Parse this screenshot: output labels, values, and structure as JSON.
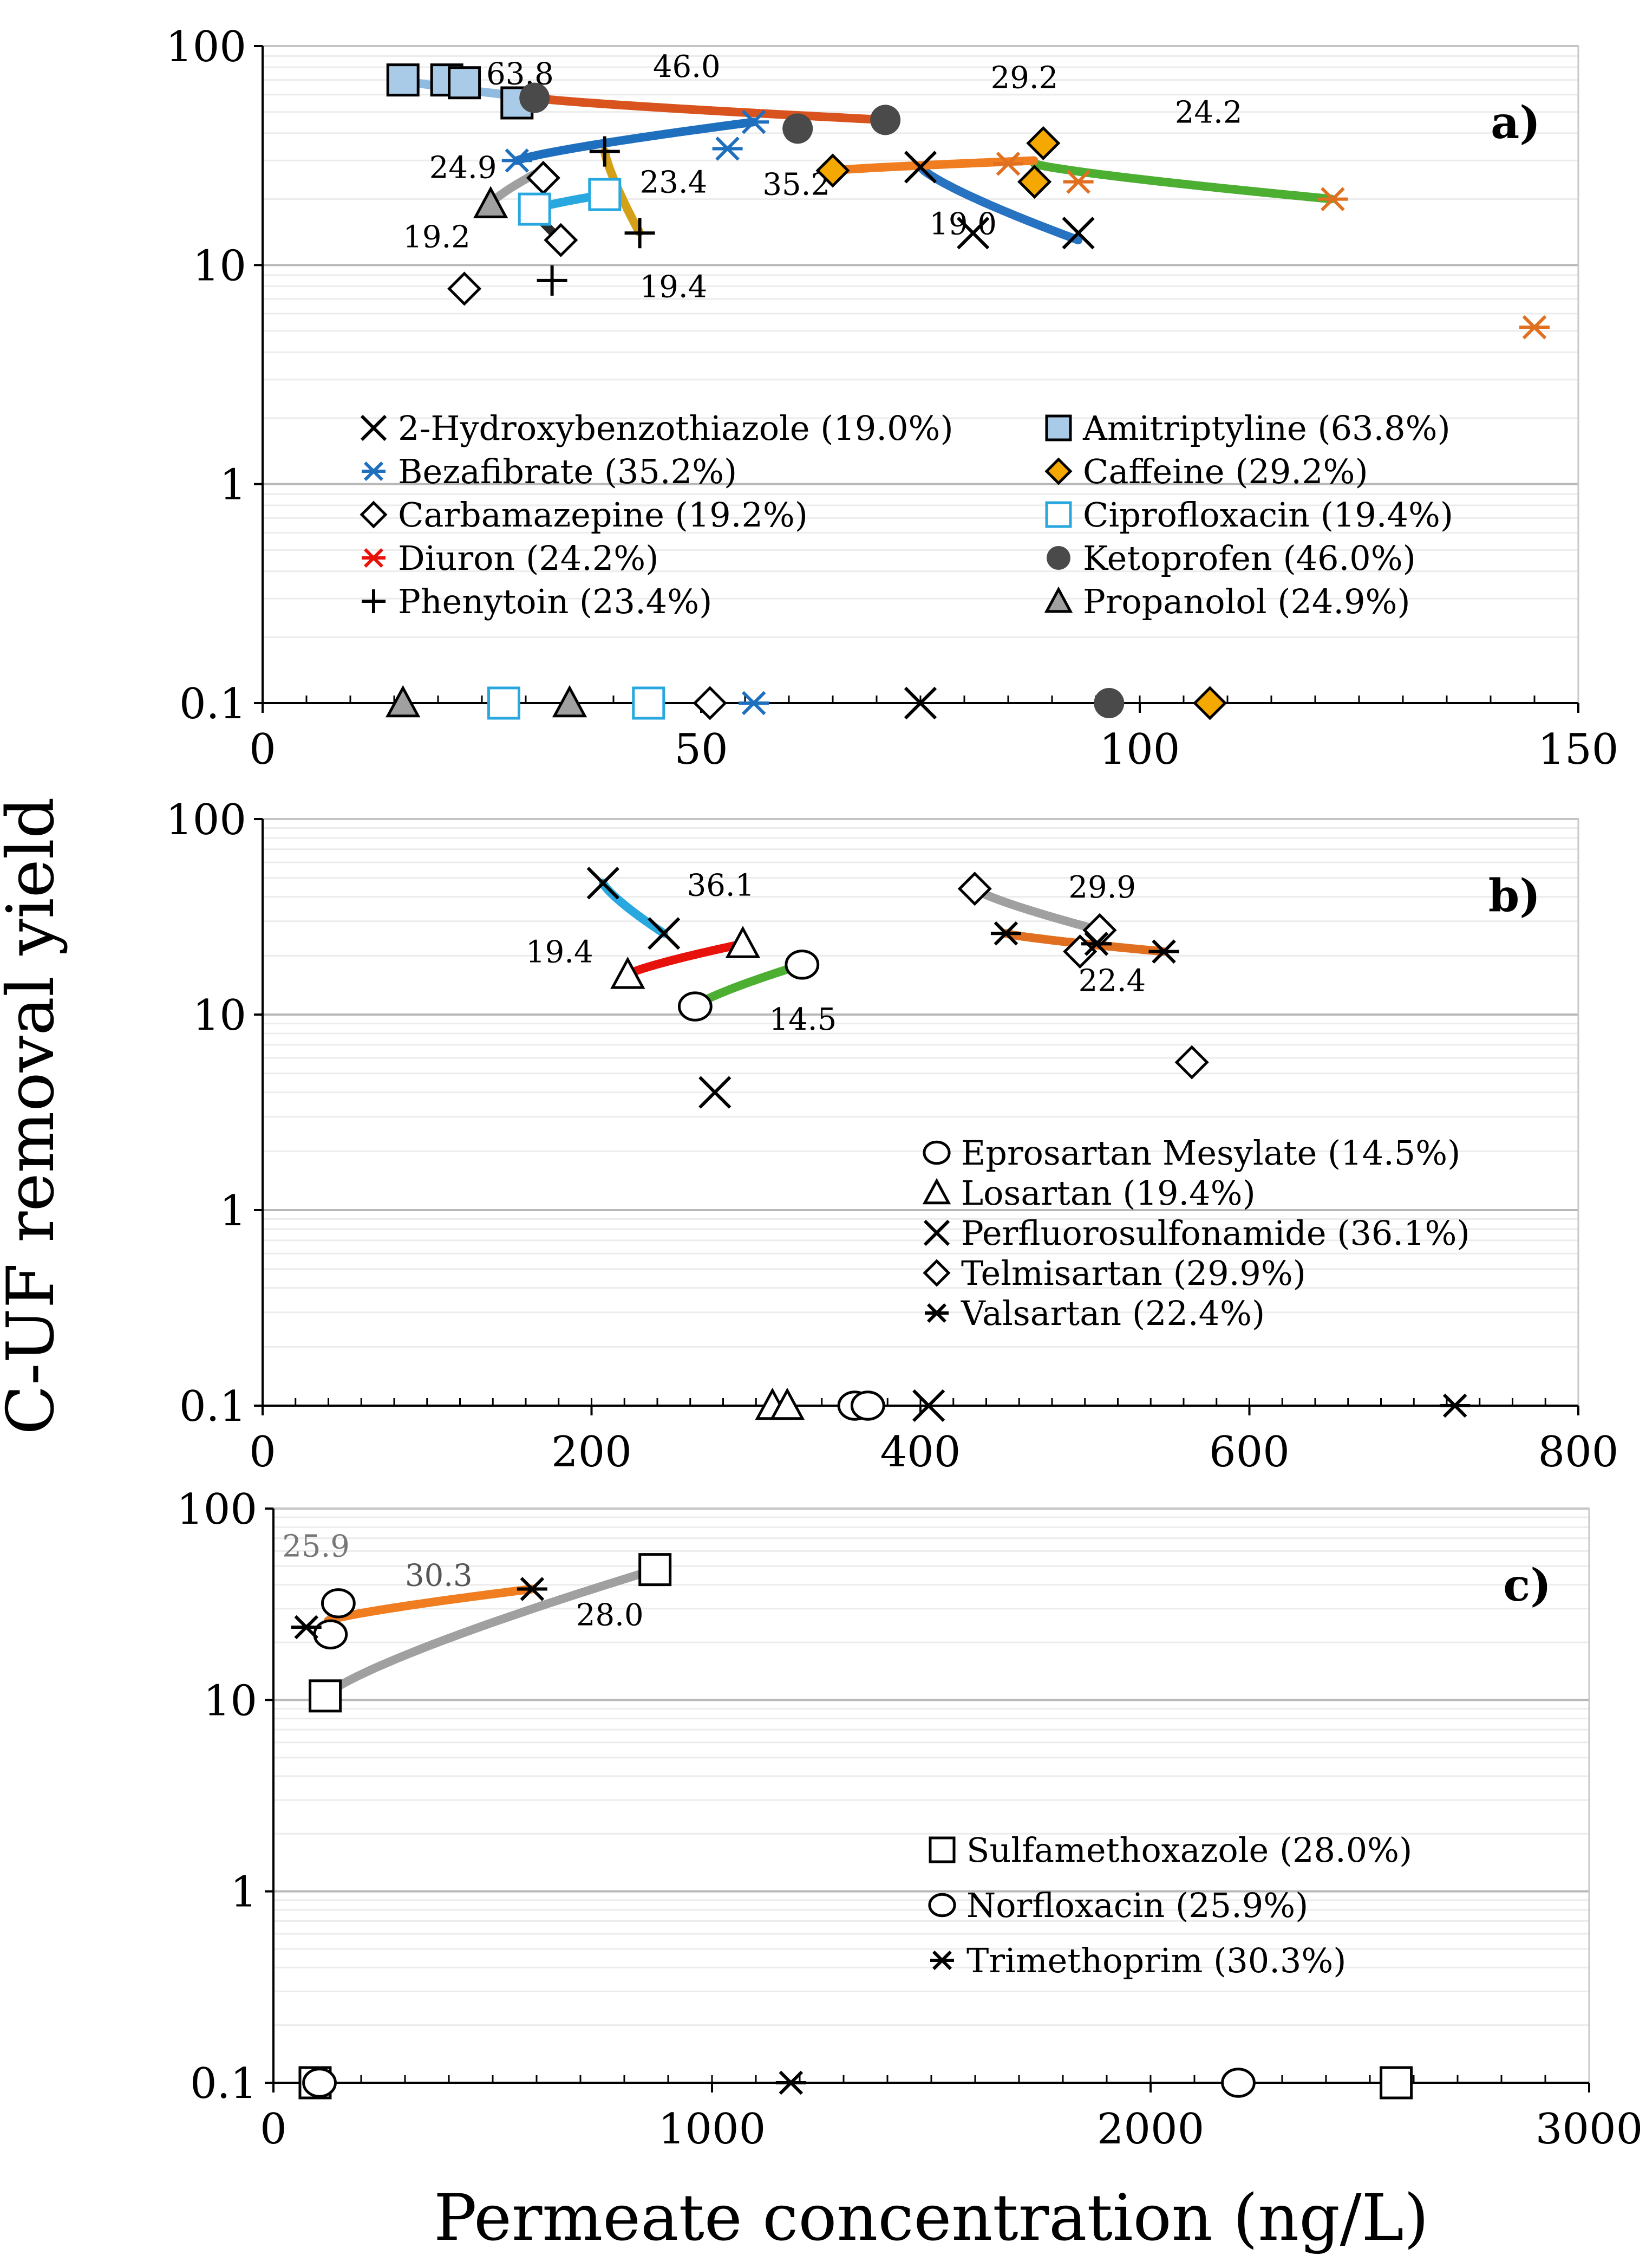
{
  "figure": {
    "ylabel": "C-UF removal yield",
    "xlabel": "Permeate concentration (ng/L)"
  },
  "chart_data": [
    {
      "type": "scatter",
      "panel_label": "a)",
      "yscale": "log",
      "ylim": [
        0.1,
        100
      ],
      "xlim": [
        0,
        150
      ],
      "xticks": [
        0,
        50,
        100,
        150
      ],
      "yticks": [
        {
          "v": 0.1,
          "label": "0.1"
        },
        {
          "v": 1,
          "label": "1"
        },
        {
          "v": 10,
          "label": "10"
        },
        {
          "v": 100,
          "label": "100"
        }
      ],
      "legend_columns": 2,
      "series": [
        {
          "name": "2-Hydroxybenzothiazole (19.0%)",
          "marker": "x",
          "color": "#000000",
          "legend_col": 0,
          "points": [
            [
              75,
              28
            ],
            [
              81,
              14
            ],
            [
              93,
              14
            ],
            [
              75,
              0.1
            ]
          ],
          "fit": {
            "x_from": 75,
            "x_to": 93,
            "y_from": 28,
            "y_to": 13,
            "color": "#2872c2",
            "label": "19.0",
            "label_x": 76,
            "label_y": 15.5
          }
        },
        {
          "name": "Bezafibrate (35.2%)",
          "marker": "asterisk",
          "color": "#1f6fbf",
          "legend_col": 0,
          "points": [
            [
              29,
              30
            ],
            [
              53,
              34
            ],
            [
              56,
              45
            ],
            [
              56,
              0.1
            ]
          ],
          "fit": {
            "x_from": 29,
            "x_to": 56,
            "y_from": 30,
            "y_to": 45,
            "color": "#1f6fbf",
            "label": "35.2",
            "label_x": 57,
            "label_y": 23.5
          }
        },
        {
          "name": "Carbamazepine (19.2%)",
          "marker": "diamond-open",
          "color": "#000000",
          "legend_col": 0,
          "points": [
            [
              23,
              7.8
            ],
            [
              32,
              25
            ],
            [
              34,
              13
            ],
            [
              51,
              0.1
            ]
          ],
          "fit": {
            "x_from": 30,
            "x_to": 34,
            "y_from": 20,
            "y_to": 13,
            "color": "#2a2a2a",
            "label": "19.2",
            "label_x": 16,
            "label_y": 13.5
          }
        },
        {
          "name": "Diuron (24.2%)",
          "marker": "asterisk",
          "color": "#e07020",
          "legend_marker_color": "#e8120c",
          "legend_col": 0,
          "points": [
            [
              85,
              29
            ],
            [
              93,
              24
            ],
            [
              122,
              20
            ],
            [
              145,
              5.2
            ]
          ],
          "fit": {
            "x_from": 88,
            "x_to": 122,
            "y_from": 29,
            "y_to": 20,
            "color": "#4caf32",
            "label": "24.2",
            "label_x": 104,
            "label_y": 50
          }
        },
        {
          "name": "Phenytoin (23.4%)",
          "marker": "plus",
          "color": "#000000",
          "legend_col": 0,
          "points": [
            [
              39,
              33
            ],
            [
              43,
              14
            ],
            [
              33,
              8.5
            ],
            [
              44,
              0.1
            ]
          ],
          "fit": {
            "x_from": 39,
            "x_to": 43,
            "y_from": 33,
            "y_to": 14,
            "color": "#d4a017",
            "label": "23.4",
            "label_x": 43,
            "label_y": 24
          }
        },
        {
          "name": "Amitriptyline (63.8%)",
          "marker": "square-filled",
          "color": "#a9cbe8",
          "legend_col": 1,
          "points": [
            [
              16,
              70
            ],
            [
              21,
              70
            ],
            [
              23,
              68
            ],
            [
              29,
              55
            ]
          ],
          "fit": {
            "x_from": 16,
            "x_to": 31,
            "y_from": 70,
            "y_to": 58,
            "color": "#8fbbe0",
            "label": "63.8",
            "label_x": 25.5,
            "label_y": 75
          }
        },
        {
          "name": "Caffeine (29.2%)",
          "marker": "diamond-filled",
          "color": "#f5a800",
          "legend_col": 1,
          "points": [
            [
              65,
              27
            ],
            [
              89,
              36
            ],
            [
              88,
              24
            ],
            [
              108,
              0.1
            ]
          ],
          "fit": {
            "x_from": 65,
            "x_to": 88,
            "y_from": 27,
            "y_to": 30,
            "color": "#f07d20",
            "label": "29.2",
            "label_x": 83,
            "label_y": 72
          }
        },
        {
          "name": "Ciprofloxacin (19.4%)",
          "marker": "square-open",
          "color": "#29a8e0",
          "legend_col": 1,
          "points": [
            [
              31,
              18
            ],
            [
              39,
              21
            ],
            [
              27.5,
              0.1
            ],
            [
              44,
              0.1
            ]
          ],
          "fit": {
            "x_from": 31,
            "x_to": 39,
            "y_from": 18,
            "y_to": 21,
            "color": "#29a8e0",
            "label": "19.4",
            "label_x": 43,
            "label_y": 8
          }
        },
        {
          "name": "Ketoprofen (46.0%)",
          "marker": "circle-filled",
          "color": "#4a4a4a",
          "legend_col": 1,
          "points": [
            [
              31,
              58
            ],
            [
              61,
              42
            ],
            [
              71,
              46
            ],
            [
              96.5,
              0.1
            ]
          ],
          "fit": {
            "x_from": 31,
            "x_to": 71,
            "y_from": 58,
            "y_to": 46,
            "color": "#d9531e",
            "label": "46.0",
            "label_x": 44.5,
            "label_y": 81
          }
        },
        {
          "name": "Propanolol (24.9%)",
          "marker": "triangle-filled",
          "color": "#a0a0a0",
          "legend_col": 1,
          "points": [
            [
              26,
              19
            ],
            [
              16,
              0.1
            ],
            [
              35,
              0.1
            ]
          ],
          "fit": {
            "x_from": 26,
            "x_to": 31,
            "y_from": 19,
            "y_to": 26,
            "color": "#a0a0a0",
            "label": "24.9",
            "label_x": 19,
            "label_y": 28
          }
        }
      ]
    },
    {
      "type": "scatter",
      "panel_label": "b)",
      "yscale": "log",
      "ylim": [
        0.1,
        100
      ],
      "xlim": [
        0,
        800
      ],
      "xticks": [
        0,
        200,
        400,
        600,
        800
      ],
      "yticks": [
        {
          "v": 0.1,
          "label": "0.1"
        },
        {
          "v": 1,
          "label": "1"
        },
        {
          "v": 10,
          "label": "10"
        },
        {
          "v": 100,
          "label": "100"
        }
      ],
      "legend_columns": 1,
      "series": [
        {
          "name": "Eprosartan Mesylate (14.5%)",
          "marker": "circle-open",
          "color": "#000000",
          "legend_col": 0,
          "points": [
            [
              263,
              11
            ],
            [
              328,
              18
            ],
            [
              360,
              0.1
            ],
            [
              368,
              0.1
            ]
          ],
          "fit": {
            "x_from": 263,
            "x_to": 328,
            "y_from": 11,
            "y_to": 18,
            "color": "#4caf32",
            "label": "14.5",
            "label_x": 308,
            "label_y": 9.5
          }
        },
        {
          "name": "Losartan (19.4%)",
          "marker": "triangle-open",
          "color": "#000000",
          "legend_col": 0,
          "points": [
            [
              222,
              16
            ],
            [
              292,
              23
            ],
            [
              310,
              0.1
            ],
            [
              319,
              0.1
            ]
          ],
          "fit": {
            "x_from": 222,
            "x_to": 292,
            "y_from": 16,
            "y_to": 23,
            "color": "#e8120c",
            "label": "19.4",
            "label_x": 160,
            "label_y": 21
          }
        },
        {
          "name": "Perfluorosulfonamide (36.1%)",
          "marker": "x",
          "color": "#000000",
          "legend_col": 0,
          "points": [
            [
              207,
              47
            ],
            [
              244,
              26
            ],
            [
              275,
              4
            ],
            [
              405,
              0.1
            ]
          ],
          "fit": {
            "x_from": 207,
            "x_to": 244,
            "y_from": 47,
            "y_to": 26,
            "color": "#29a8e0",
            "label": "36.1",
            "label_x": 258,
            "label_y": 46
          }
        },
        {
          "name": "Telmisartan (29.9%)",
          "marker": "diamond-open",
          "color": "#000000",
          "legend_col": 0,
          "points": [
            [
              433,
              44
            ],
            [
              509,
              27
            ],
            [
              497,
              21
            ],
            [
              565,
              5.7
            ]
          ],
          "fit": {
            "x_from": 433,
            "x_to": 509,
            "y_from": 44,
            "y_to": 27,
            "color": "#a0a0a0",
            "label": "29.9",
            "label_x": 490,
            "label_y": 45
          }
        },
        {
          "name": "Valsartan (22.4%)",
          "marker": "asterisk",
          "color": "#000000",
          "legend_col": 0,
          "points": [
            [
              452,
              26
            ],
            [
              507,
              23
            ],
            [
              548,
              21
            ],
            [
              725,
              0.1
            ]
          ],
          "fit": {
            "x_from": 452,
            "x_to": 548,
            "y_from": 26,
            "y_to": 21,
            "color": "#e07020",
            "label": "22.4",
            "label_x": 496,
            "label_y": 15
          }
        }
      ]
    },
    {
      "type": "scatter",
      "panel_label": "c)",
      "yscale": "log",
      "ylim": [
        0.1,
        100
      ],
      "xlim": [
        0,
        3000
      ],
      "xticks": [
        0,
        1000,
        2000,
        3000
      ],
      "yticks": [
        {
          "v": 0.1,
          "label": "0.1"
        },
        {
          "v": 1,
          "label": "1"
        },
        {
          "v": 10,
          "label": "10"
        },
        {
          "v": 100,
          "label": "100"
        }
      ],
      "legend_columns": 1,
      "series": [
        {
          "name": "Sulfamethoxazole (28.0%)",
          "marker": "square-open",
          "color": "#000000",
          "legend_col": 0,
          "points": [
            [
              118,
              10.5
            ],
            [
              870,
              48
            ],
            [
              2560,
              0.1
            ],
            [
              95,
              0.1
            ]
          ],
          "fit": {
            "x_from": 118,
            "x_to": 870,
            "y_from": 10.5,
            "y_to": 48,
            "color": "#a0a0a0",
            "label": "28.0",
            "label_x": 690,
            "label_y": 28
          }
        },
        {
          "name": "Norfloxacin (25.9%)",
          "marker": "circle-open",
          "color": "#000000",
          "legend_col": 0,
          "points": [
            [
              148,
              32
            ],
            [
              130,
              22
            ],
            [
              2200,
              0.1
            ],
            [
              105,
              0.1
            ]
          ],
          "fit": {
            "x_from": 115,
            "x_to": 150,
            "y_from": 20,
            "y_to": 34,
            "color": "#29a8e0",
            "label": "25.9",
            "label_x": 20,
            "label_y": 64,
            "label_color": "#777777"
          }
        },
        {
          "name": "Trimethoprim (30.3%)",
          "marker": "asterisk",
          "color": "#000000",
          "legend_col": 0,
          "points": [
            [
              75,
              24
            ],
            [
              590,
              38
            ],
            [
              1180,
              0.1
            ]
          ],
          "fit": {
            "x_from": 125,
            "x_to": 590,
            "y_from": 26,
            "y_to": 38,
            "color": "#f07d20",
            "label": "30.3",
            "label_x": 300,
            "label_y": 45,
            "label_color": "#555555"
          }
        }
      ]
    }
  ]
}
